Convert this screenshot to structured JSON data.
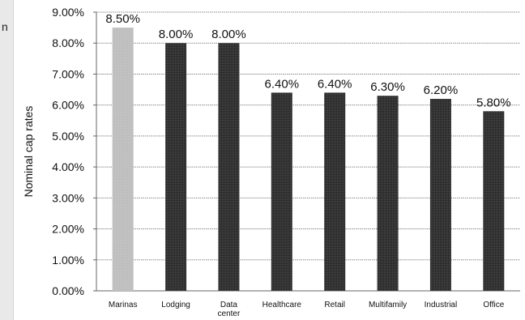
{
  "side_text": "n",
  "chart_data": {
    "type": "bar",
    "title": "",
    "xlabel": "",
    "ylabel": "Nominal cap rates",
    "ylim": [
      0,
      9
    ],
    "yticks": [
      "0.00%",
      "1.00%",
      "2.00%",
      "3.00%",
      "4.00%",
      "5.00%",
      "6.00%",
      "7.00%",
      "8.00%",
      "9.00%"
    ],
    "categories": [
      "Marinas",
      "Lodging",
      "Data center",
      "Healthcare",
      "Retail",
      "Multifamily",
      "Industrial",
      "Office"
    ],
    "category_lines": [
      [
        "Marinas"
      ],
      [
        "Lodging"
      ],
      [
        "Data",
        "center"
      ],
      [
        "Healthcare"
      ],
      [
        "Retail"
      ],
      [
        "Multifamily"
      ],
      [
        "Industrial"
      ],
      [
        "Office"
      ]
    ],
    "values": [
      8.5,
      8.0,
      8.0,
      6.4,
      6.4,
      6.3,
      6.2,
      5.8
    ],
    "data_labels": [
      "8.50%",
      "8.00%",
      "8.00%",
      "6.40%",
      "6.40%",
      "6.30%",
      "6.20%",
      "5.80%"
    ],
    "bar_colors": [
      "#bdbdbd",
      "#2b2b2b",
      "#2b2b2b",
      "#2b2b2b",
      "#2b2b2b",
      "#2b2b2b",
      "#2b2b2b",
      "#2b2b2b"
    ],
    "grid": true,
    "legend": "none"
  }
}
